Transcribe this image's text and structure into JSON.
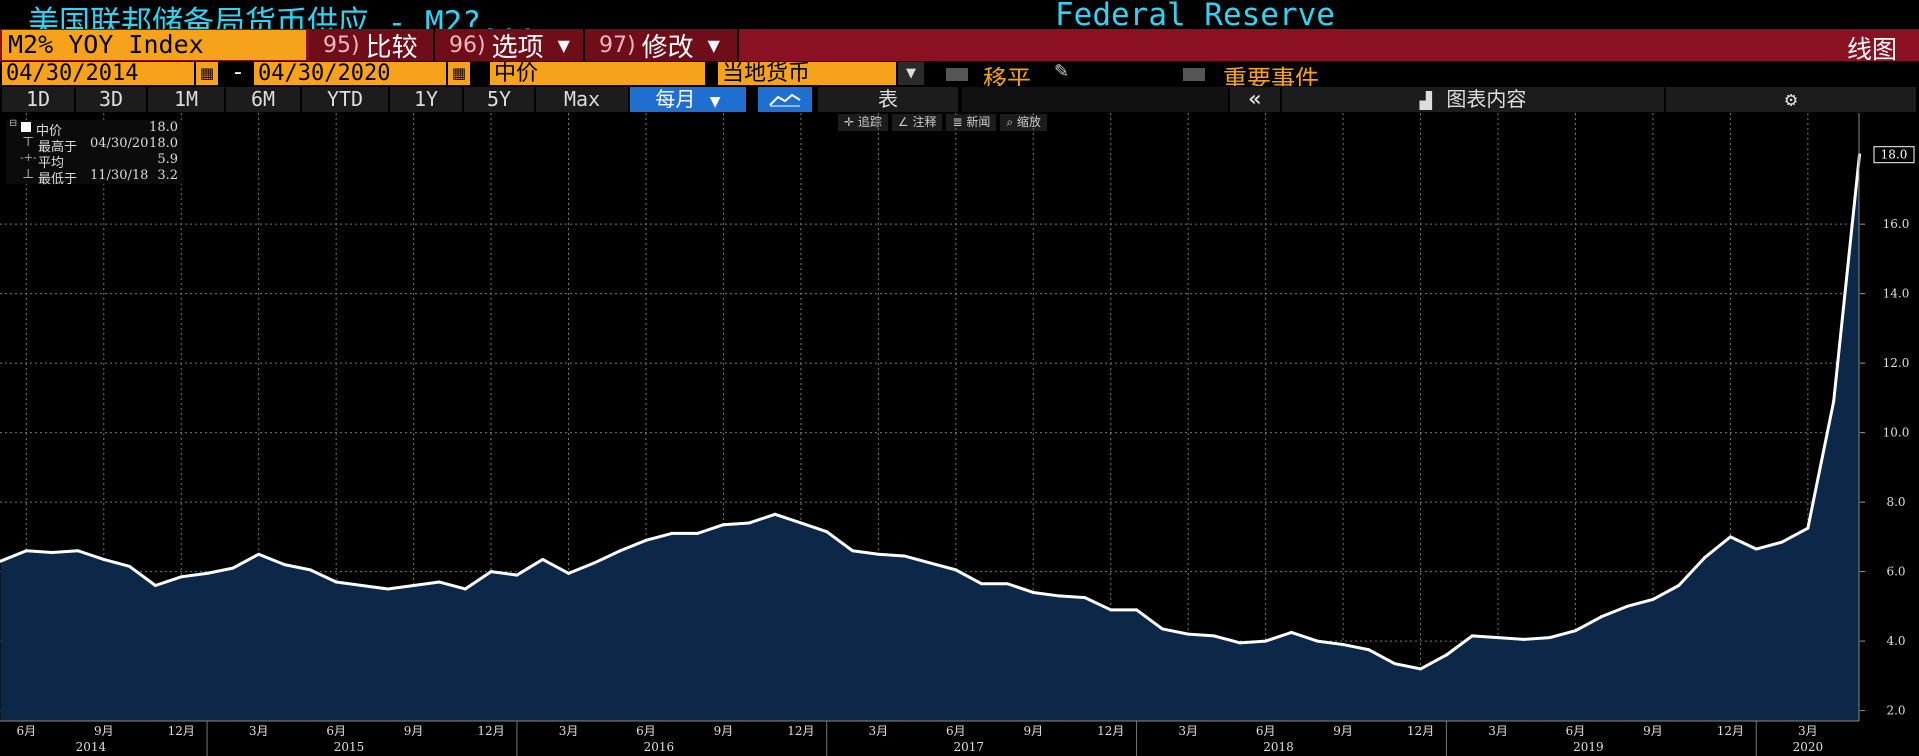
{
  "title": {
    "left": "美国联邦储备局货币供应 - M2?...",
    "right": "Federal Reserve"
  },
  "toolbar": {
    "ticker": "M2% YOY Index",
    "compare": {
      "num": "95)",
      "label": "比较"
    },
    "options": {
      "num": "96)",
      "label": "选项"
    },
    "modify": {
      "num": "97)",
      "label": "修改"
    },
    "chart_type": "线图"
  },
  "range": {
    "start": "04/30/2014",
    "sep": "-",
    "end": "04/30/2020",
    "field": "中价",
    "currency": "当地货币",
    "shift_label": "移平",
    "events_label": "重要事件"
  },
  "periods": {
    "items": [
      "1D",
      "3D",
      "1M",
      "6M",
      "YTD",
      "1Y",
      "5Y",
      "Max"
    ],
    "frequency": "每月",
    "table_label": "表",
    "chart_content_label": "图表内容"
  },
  "chart_tools": [
    "追踪",
    "注释",
    "新闻",
    "缩放"
  ],
  "legend": {
    "series_label": "中价",
    "series_value": "18.0",
    "high_label": "最高于",
    "high_date": "04/30/20",
    "high_value": "18.0",
    "avg_label": "平均",
    "avg_value": "5.9",
    "low_label": "最低于",
    "low_date": "11/30/18",
    "low_value": "3.2"
  },
  "colors": {
    "line": "#ffffff",
    "area": "#0c2748",
    "orange": "#f7a21b",
    "title": "#32d2f0",
    "red": "#8b1022"
  },
  "chart_data": {
    "type": "area",
    "title": "",
    "xlabel": "",
    "ylabel": "",
    "ylim": [
      1.7,
      19.2
    ],
    "y_ticks": [
      2.0,
      4.0,
      6.0,
      8.0,
      10.0,
      12.0,
      14.0,
      16.0
    ],
    "last_value_label": "18.0",
    "x_month_labels": [
      "6月",
      "9月",
      "12月",
      "3月",
      "6月",
      "9月",
      "12月",
      "3月",
      "6月",
      "9月",
      "12月",
      "3月",
      "6月",
      "9月",
      "12月",
      "3月",
      "6月",
      "9月",
      "12月",
      "3月",
      "6月",
      "9月",
      "12月",
      "3月"
    ],
    "x_year_labels": [
      "2014",
      "2015",
      "2016",
      "2017",
      "2018",
      "2019",
      "2020"
    ],
    "series": [
      {
        "values": [
          6.3,
          6.6,
          6.55,
          6.6,
          6.35,
          6.15,
          5.6,
          5.85,
          5.95,
          6.1,
          6.5,
          6.2,
          6.05,
          5.7,
          5.6,
          5.5,
          5.6,
          5.7,
          5.5,
          6.0,
          5.9,
          6.35,
          5.95,
          6.25,
          6.6,
          6.9,
          7.1,
          7.1,
          7.35,
          7.4,
          7.65,
          7.4,
          7.15,
          6.6,
          6.5,
          6.45,
          6.25,
          6.05,
          5.65,
          5.65,
          5.4,
          5.3,
          5.25,
          4.9,
          4.9,
          4.35,
          4.2,
          4.15,
          3.95,
          4.0,
          4.25,
          4.0,
          3.9,
          3.75,
          3.35,
          3.2,
          3.6,
          4.15,
          4.1,
          4.05,
          4.1,
          4.3,
          4.7,
          5.0,
          5.2,
          5.6,
          6.4,
          7.0,
          6.65,
          6.85,
          7.25,
          10.9,
          18.0
        ]
      }
    ]
  }
}
